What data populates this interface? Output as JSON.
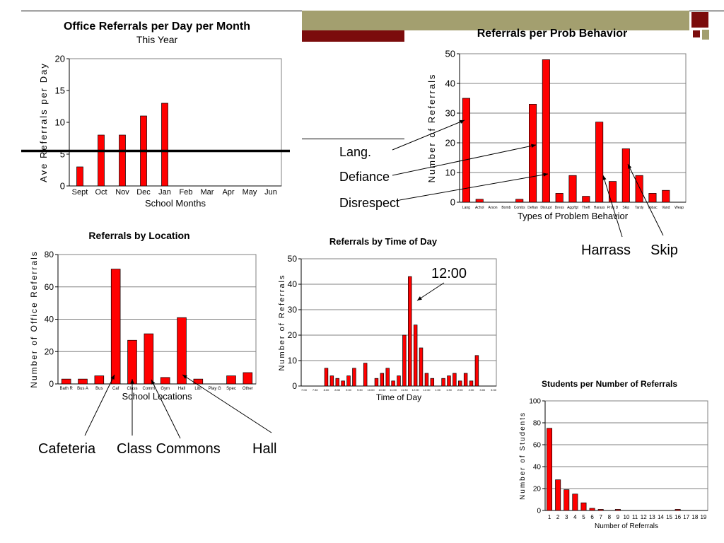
{
  "colors": {
    "bar": "#ff0000",
    "olive": "#a39f6f",
    "maroon": "#7b0c0c"
  },
  "chart_data": [
    {
      "id": "c1",
      "type": "bar",
      "title": "Office Referrals per Day per Month",
      "subtitle": "This Year",
      "xlabel": "School Months",
      "ylabel": "Ave Referrals per Day",
      "ylim": [
        0,
        20
      ],
      "yticks": [
        0,
        5,
        10,
        15,
        20
      ],
      "grid": false,
      "reference_line": 5.5,
      "categories": [
        "Sept",
        "Oct",
        "Nov",
        "Dec",
        "Jan",
        "Feb",
        "Mar",
        "Apr",
        "May",
        "Jun"
      ],
      "values": [
        3,
        8,
        8,
        11,
        13,
        0,
        0,
        0,
        0,
        0
      ]
    },
    {
      "id": "c2",
      "type": "bar",
      "title": "Referrals per Prob Behavior",
      "subtitle": "",
      "xlabel": "Types of Problem Behavior",
      "ylabel": "Number of Referrals",
      "ylim": [
        0,
        50
      ],
      "yticks": [
        0,
        10,
        20,
        30,
        40,
        50
      ],
      "grid": true,
      "categories": [
        "Lang",
        "Achol",
        "Arson",
        "Bomb",
        "Combs",
        "Defian",
        "Disrupt",
        "Dress",
        "Agg/fgt",
        "Theft",
        "Harass",
        "Prop D",
        "Skip",
        "Tardy",
        "Tobac",
        "Vand",
        "Weap"
      ],
      "values": [
        35,
        1,
        0,
        0,
        1,
        33,
        48,
        3,
        9,
        2,
        27,
        7,
        18,
        9,
        3,
        4,
        0
      ]
    },
    {
      "id": "c3",
      "type": "bar",
      "title": "Referrals by Location",
      "subtitle": "",
      "xlabel": "School Locations",
      "ylabel": "Number of Office Referrals",
      "ylim": [
        0,
        80
      ],
      "yticks": [
        0,
        20,
        40,
        60,
        80
      ],
      "grid": true,
      "categories": [
        "Bath R",
        "Bus A",
        "Bus",
        "Caf",
        "Class",
        "Comm",
        "Gym",
        "Hall",
        "Libr",
        "Play G",
        "Spec",
        "Other"
      ],
      "values": [
        3,
        3,
        5,
        71,
        27,
        31,
        4,
        41,
        3,
        0,
        5,
        7
      ]
    },
    {
      "id": "c4",
      "type": "bar",
      "title": "Referrals by Time of Day",
      "subtitle": "",
      "xlabel": "Time of Day",
      "ylabel": "Number of Referrals",
      "ylim": [
        0,
        50
      ],
      "yticks": [
        0,
        10,
        20,
        30,
        40,
        50
      ],
      "grid": true,
      "categories": [
        "7:00",
        "7:15",
        "7:30",
        "7:45",
        "8:00",
        "8:15",
        "8:30",
        "8:45",
        "9:00",
        "9:15",
        "9:30",
        "9:45",
        "10:00",
        "10:15",
        "10:30",
        "10:45",
        "11:00",
        "11:15",
        "11:30",
        "11:45",
        "12:00",
        "12:15",
        "12:30",
        "12:45",
        "1:00",
        "1:15",
        "1:30",
        "1:45",
        "2:00",
        "2:15",
        "2:30",
        "2:45",
        "3:00",
        "3:15",
        "3:30"
      ],
      "tick_labels": [
        "7:00",
        "",
        "7:30",
        "",
        "8:00",
        "",
        "8:30",
        "",
        "9:00",
        "",
        "9:30",
        "",
        "10:00",
        "",
        "10:30",
        "",
        "11:00",
        "",
        "11:30",
        "",
        "12:00",
        "",
        "12:30",
        "",
        "1:00",
        "",
        "1:30",
        "",
        "2:00",
        "",
        "2:30",
        "",
        "3:00",
        "",
        "3:30"
      ],
      "values": [
        0,
        0,
        0,
        0,
        7,
        4,
        3,
        2,
        4,
        7,
        0,
        9,
        0,
        3,
        5,
        7,
        2,
        4,
        20,
        43,
        24,
        15,
        5,
        3,
        0,
        3,
        4,
        5,
        2,
        5,
        2,
        12,
        0,
        0,
        0
      ]
    },
    {
      "id": "c5",
      "type": "bar",
      "title": "Students per Number of Referrals",
      "subtitle": "",
      "xlabel": "Number of Referrals",
      "ylabel": "Number of Students",
      "ylim": [
        0,
        100
      ],
      "yticks": [
        0,
        20,
        40,
        60,
        80,
        100
      ],
      "grid": true,
      "categories": [
        "1",
        "2",
        "3",
        "4",
        "5",
        "6",
        "7",
        "8",
        "9",
        "10",
        "11",
        "12",
        "13",
        "14",
        "15",
        "16",
        "17",
        "18",
        "19"
      ],
      "values": [
        75,
        28,
        19,
        15,
        7,
        2,
        1,
        0,
        1,
        0,
        0,
        0,
        0,
        0,
        0,
        1,
        0,
        0,
        0
      ]
    }
  ],
  "annotations": {
    "lang": "Lang.",
    "defiance": "Defiance",
    "disrespect": "Disrespect",
    "harrass": "Harrass",
    "skip": "Skip",
    "noon": "12:00",
    "cafeteria": "Cafeteria",
    "class_commons": "Class Commons",
    "hall": "Hall"
  }
}
